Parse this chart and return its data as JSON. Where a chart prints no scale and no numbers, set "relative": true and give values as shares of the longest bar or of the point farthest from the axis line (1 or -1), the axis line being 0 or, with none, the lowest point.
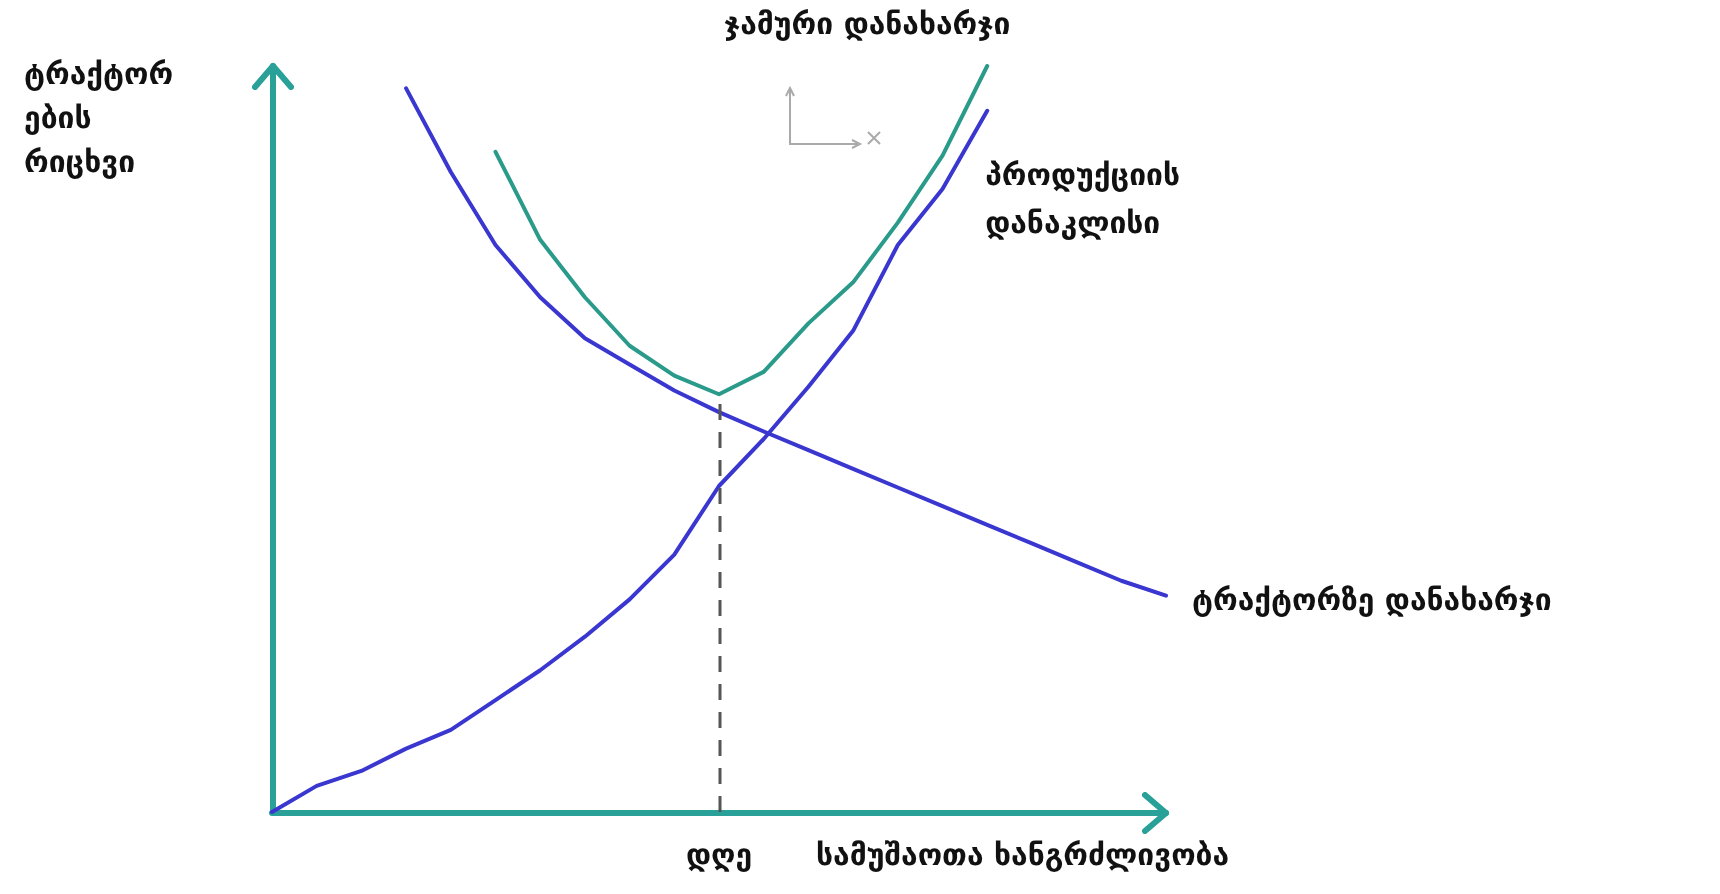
{
  "chart_data": {
    "type": "line",
    "relative": true,
    "xlabel": "სამუშაოთა ხანგრძლივობა",
    "ylabel": "ტრაქტორ\nების\nრიცხვი",
    "grid": false,
    "legend": false,
    "categories": [
      null,
      null,
      null,
      null,
      null,
      null,
      null,
      null,
      null,
      null,
      null,
      null,
      null,
      null,
      null,
      null,
      null,
      null,
      null,
      null,
      null
    ],
    "series": [
      {
        "name": "ტრაქტორზე დანახარჯი",
        "color": "#3a36d0",
        "values": [
          null,
          null,
          null,
          0.97,
          0.858,
          0.76,
          0.69,
          0.635,
          0.6,
          0.565,
          0.536,
          0.51,
          0.485,
          0.46,
          0.435,
          0.41,
          0.385,
          0.36,
          0.335,
          0.31,
          0.29
        ]
      },
      {
        "name": "პროდუქციის\nდანაკლისი",
        "color": "#3a36d0",
        "values": [
          0,
          0.035,
          0.055,
          0.085,
          0.11,
          0.15,
          0.19,
          0.235,
          0.285,
          0.345,
          0.437,
          0.5,
          0.57,
          0.645,
          0.76,
          0.835,
          0.94,
          null,
          null,
          null,
          null
        ]
      },
      {
        "name": "ჯამური დანახარჯი",
        "color": "#2a9a8a",
        "values": [
          null,
          null,
          null,
          null,
          null,
          0.885,
          0.767,
          0.69,
          0.625,
          0.585,
          0.56,
          0.59,
          0.655,
          0.71,
          0.79,
          0.88,
          1.0,
          null,
          null,
          null,
          null
        ]
      }
    ],
    "ref_lines": [
      {
        "axis": "x",
        "label": "დღე",
        "line_style": "dashed",
        "color": "#555555"
      }
    ]
  }
}
